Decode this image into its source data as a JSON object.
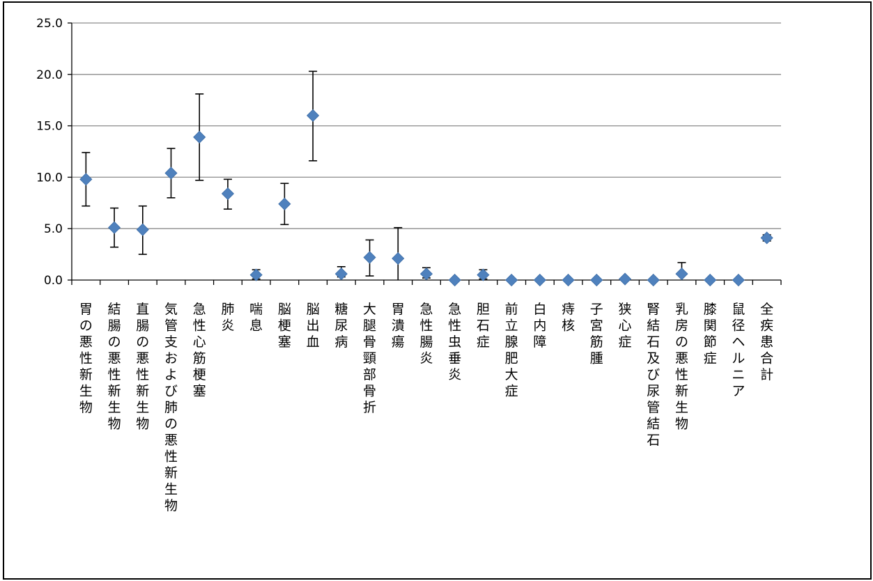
{
  "chart_data": {
    "type": "scatter",
    "title": "",
    "xlabel": "",
    "ylabel": "",
    "ylim": [
      0,
      25
    ],
    "y_ticks": [
      "25.0",
      "20.0",
      "15.0",
      "10.0",
      "5.0",
      "0.0"
    ],
    "y_tick_values": [
      25,
      20,
      15,
      10,
      5,
      0
    ],
    "grid": true,
    "legend": "none",
    "marker": "diamond",
    "colors": {
      "marker": "#4F81BD",
      "marker_edge": "#3A6BA5",
      "grid": "#8C8C8C",
      "error_bar": "#000000"
    },
    "categories": [
      "胃の悪性新生物",
      "結腸の悪性新生物",
      "直腸の悪性新生物",
      "気管支および肺の悪性新生物",
      "急性心筋梗塞",
      "肺炎",
      "喘息",
      "脳梗塞",
      "脳出血",
      "糖尿病",
      "大腿骨頸部骨折",
      "胃潰瘍",
      "急性腸炎",
      "急性虫垂炎",
      "胆石症",
      "前立腺肥大症",
      "白内障",
      "痔核",
      "子宮筋腫",
      "狭心症",
      "腎結石及び尿管結石",
      "乳房の悪性新生物",
      "膝関節症",
      "鼠径ヘルニア",
      "全疾患合計"
    ],
    "values": [
      9.8,
      5.1,
      4.9,
      10.4,
      13.9,
      8.4,
      0.5,
      7.4,
      16.0,
      0.6,
      2.2,
      2.1,
      0.6,
      0.0,
      0.5,
      0.0,
      0.0,
      0.0,
      0.0,
      0.1,
      0.0,
      0.6,
      0.0,
      0.0,
      4.1
    ],
    "error_low": [
      7.2,
      3.2,
      2.5,
      8.0,
      9.7,
      6.9,
      0.1,
      5.4,
      11.6,
      0.3,
      0.4,
      0.0,
      0.2,
      0.0,
      0.1,
      0.0,
      0.0,
      0.0,
      0.0,
      0.0,
      0.0,
      0.0,
      0.0,
      0.0,
      3.8
    ],
    "error_high": [
      12.4,
      7.0,
      7.2,
      12.8,
      18.1,
      9.8,
      1.0,
      9.4,
      20.3,
      1.3,
      3.9,
      5.1,
      1.2,
      0.0,
      1.0,
      0.0,
      0.0,
      0.0,
      0.0,
      0.2,
      0.0,
      1.7,
      0.0,
      0.0,
      4.4
    ]
  }
}
